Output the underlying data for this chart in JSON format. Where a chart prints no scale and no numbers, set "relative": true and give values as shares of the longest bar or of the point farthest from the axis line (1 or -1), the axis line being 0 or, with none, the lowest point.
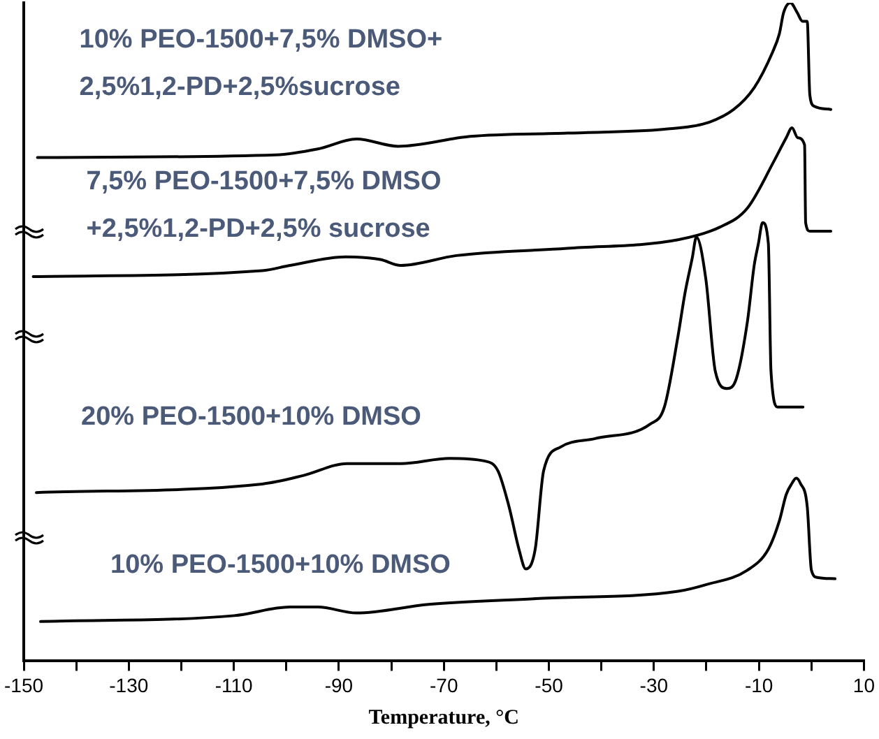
{
  "chart_data": {
    "type": "line",
    "relative": true,
    "xlabel": "Temperature, °C",
    "xlim": [
      -150,
      10
    ],
    "xticks": [
      -150,
      {
        "value": -140,
        "label": null
      },
      -130,
      {
        "value": -120,
        "label": null
      },
      -110,
      {
        "value": -100,
        "label": null
      },
      -90,
      {
        "value": -80,
        "label": null
      },
      -70,
      {
        "value": -60,
        "label": null
      },
      -50,
      {
        "value": -40,
        "label": null
      },
      -30,
      {
        "value": -20,
        "label": null
      },
      -10,
      {
        "value": 0,
        "label": null
      },
      10
    ],
    "grid": false,
    "legend": false,
    "marker": "none",
    "line_style": "solid",
    "series": [
      {
        "name": "10% PEO-1500+7,5% DMSO+\n2,5%1,2-PD+2,5%sucrose",
        "color": "#000000",
        "x": [
          -147.4,
          -102,
          -94,
          -86.6,
          -78.7,
          -65,
          -46.5,
          -28,
          -20.1,
          -14.8,
          -10.9,
          -7.4,
          -6.1,
          -5.3,
          -4,
          -2.7,
          -1.7,
          -0.8,
          -0.3,
          0.5,
          3.7
        ],
        "values": [
          0.765,
          0.769,
          0.778,
          0.793,
          0.782,
          0.797,
          0.802,
          0.808,
          0.817,
          0.838,
          0.871,
          0.925,
          0.953,
          0.985,
          1,
          0.985,
          0.972,
          0.972,
          0.86,
          0.843,
          0.838
        ]
      },
      {
        "name": "7,5% PEO-1500+7,5% DMSO\n+2,5%1,2-PD+2,5% sucrose",
        "color": "#000000",
        "x": [
          -148.2,
          -104.6,
          -99.3,
          -88.7,
          -82.1,
          -78.2,
          -67.6,
          -46.5,
          -25.4,
          -17.5,
          -12.2,
          -6.9,
          -4.8,
          -3.7,
          -2.6,
          -1.3,
          -1.1,
          -0.3,
          3.7
        ],
        "values": [
          0.584,
          0.593,
          0.601,
          0.614,
          0.61,
          0.601,
          0.616,
          0.627,
          0.64,
          0.659,
          0.688,
          0.763,
          0.795,
          0.81,
          0.795,
          0.784,
          0.666,
          0.653,
          0.653
        ]
      },
      {
        "name": "20% PEO-1500+10% DMSO",
        "color": "#000000",
        "x": [
          -147.6,
          -104.6,
          -96.7,
          -88.4,
          -78.2,
          -68.9,
          -62.3,
          -59.7,
          -57.6,
          -55.7,
          -54.4,
          -52.6,
          -51,
          -47.8,
          -41.2,
          -30.7,
          -28,
          -25.4,
          -24.1,
          -22.7,
          -21.9,
          -20.1,
          -18.3,
          -16.1,
          -14.3,
          -12.2,
          -10.9,
          -10.1,
          -9.3,
          -8.2,
          -7.7,
          -6.4,
          -1.6
        ],
        "values": [
          0.256,
          0.269,
          0.282,
          0.3,
          0.3,
          0.308,
          0.304,
          0.289,
          0.235,
          0.17,
          0.14,
          0.17,
          0.289,
          0.325,
          0.338,
          0.36,
          0.386,
          0.494,
          0.558,
          0.612,
          0.644,
          0.58,
          0.44,
          0.414,
          0.429,
          0.515,
          0.601,
          0.634,
          0.666,
          0.634,
          0.44,
          0.386,
          0.386
        ]
      },
      {
        "name": "10% PEO-1500+10% DMSO",
        "color": "#000000",
        "x": [
          -146.8,
          -109.9,
          -99.3,
          -94,
          -86.6,
          -72.9,
          -51.8,
          -25.4,
          -20.1,
          -12.2,
          -8.2,
          -6.1,
          -4.8,
          -3.7,
          -2.9,
          -2.1,
          -0.8,
          0,
          1.1,
          4.5
        ],
        "values": [
          0.06,
          0.069,
          0.082,
          0.082,
          0.073,
          0.086,
          0.095,
          0.106,
          0.116,
          0.138,
          0.17,
          0.213,
          0.253,
          0.27,
          0.278,
          0.27,
          0.235,
          0.138,
          0.127,
          0.125
        ]
      }
    ]
  }
}
